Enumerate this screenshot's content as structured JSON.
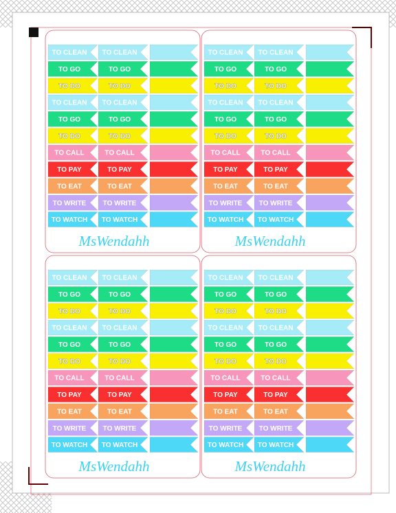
{
  "panels": [
    {
      "rows": [
        "TO CLEAN",
        "TO GO",
        "TO DO",
        "TO CLEAN",
        "TO GO",
        "TO DO",
        "TO CALL",
        "TO PAY",
        "TO EAT",
        "TO WRITE",
        "TO WATCH"
      ],
      "brand": "MsWendahh"
    },
    {
      "rows": [
        "TO CLEAN",
        "TO GO",
        "TO DO",
        "TO CLEAN",
        "TO GO",
        "TO DO",
        "TO CALL",
        "TO PAY",
        "TO EAT",
        "TO WRITE",
        "TO WATCH"
      ],
      "brand": "MsWendahh"
    },
    {
      "rows": [
        "TO CLEAN",
        "TO GO",
        "TO DO",
        "TO CLEAN",
        "TO GO",
        "TO DO",
        "TO CALL",
        "TO PAY",
        "TO EAT",
        "TO WRITE",
        "TO WATCH"
      ],
      "brand": "MsWendahh"
    },
    {
      "rows": [
        "TO CLEAN",
        "TO GO",
        "TO DO",
        "TO CLEAN",
        "TO GO",
        "TO DO",
        "TO CALL",
        "TO PAY",
        "TO EAT",
        "TO WRITE",
        "TO WATCH"
      ],
      "brand": "MsWendahh"
    }
  ],
  "row_colors": [
    "#a6ecf8",
    "#1edc86",
    "#f8f000",
    "#a6ecf8",
    "#1edc86",
    "#f8f000",
    "#f796ba",
    "#f9302f",
    "#f9a45e",
    "#c4a8f8",
    "#4ed8f8"
  ]
}
